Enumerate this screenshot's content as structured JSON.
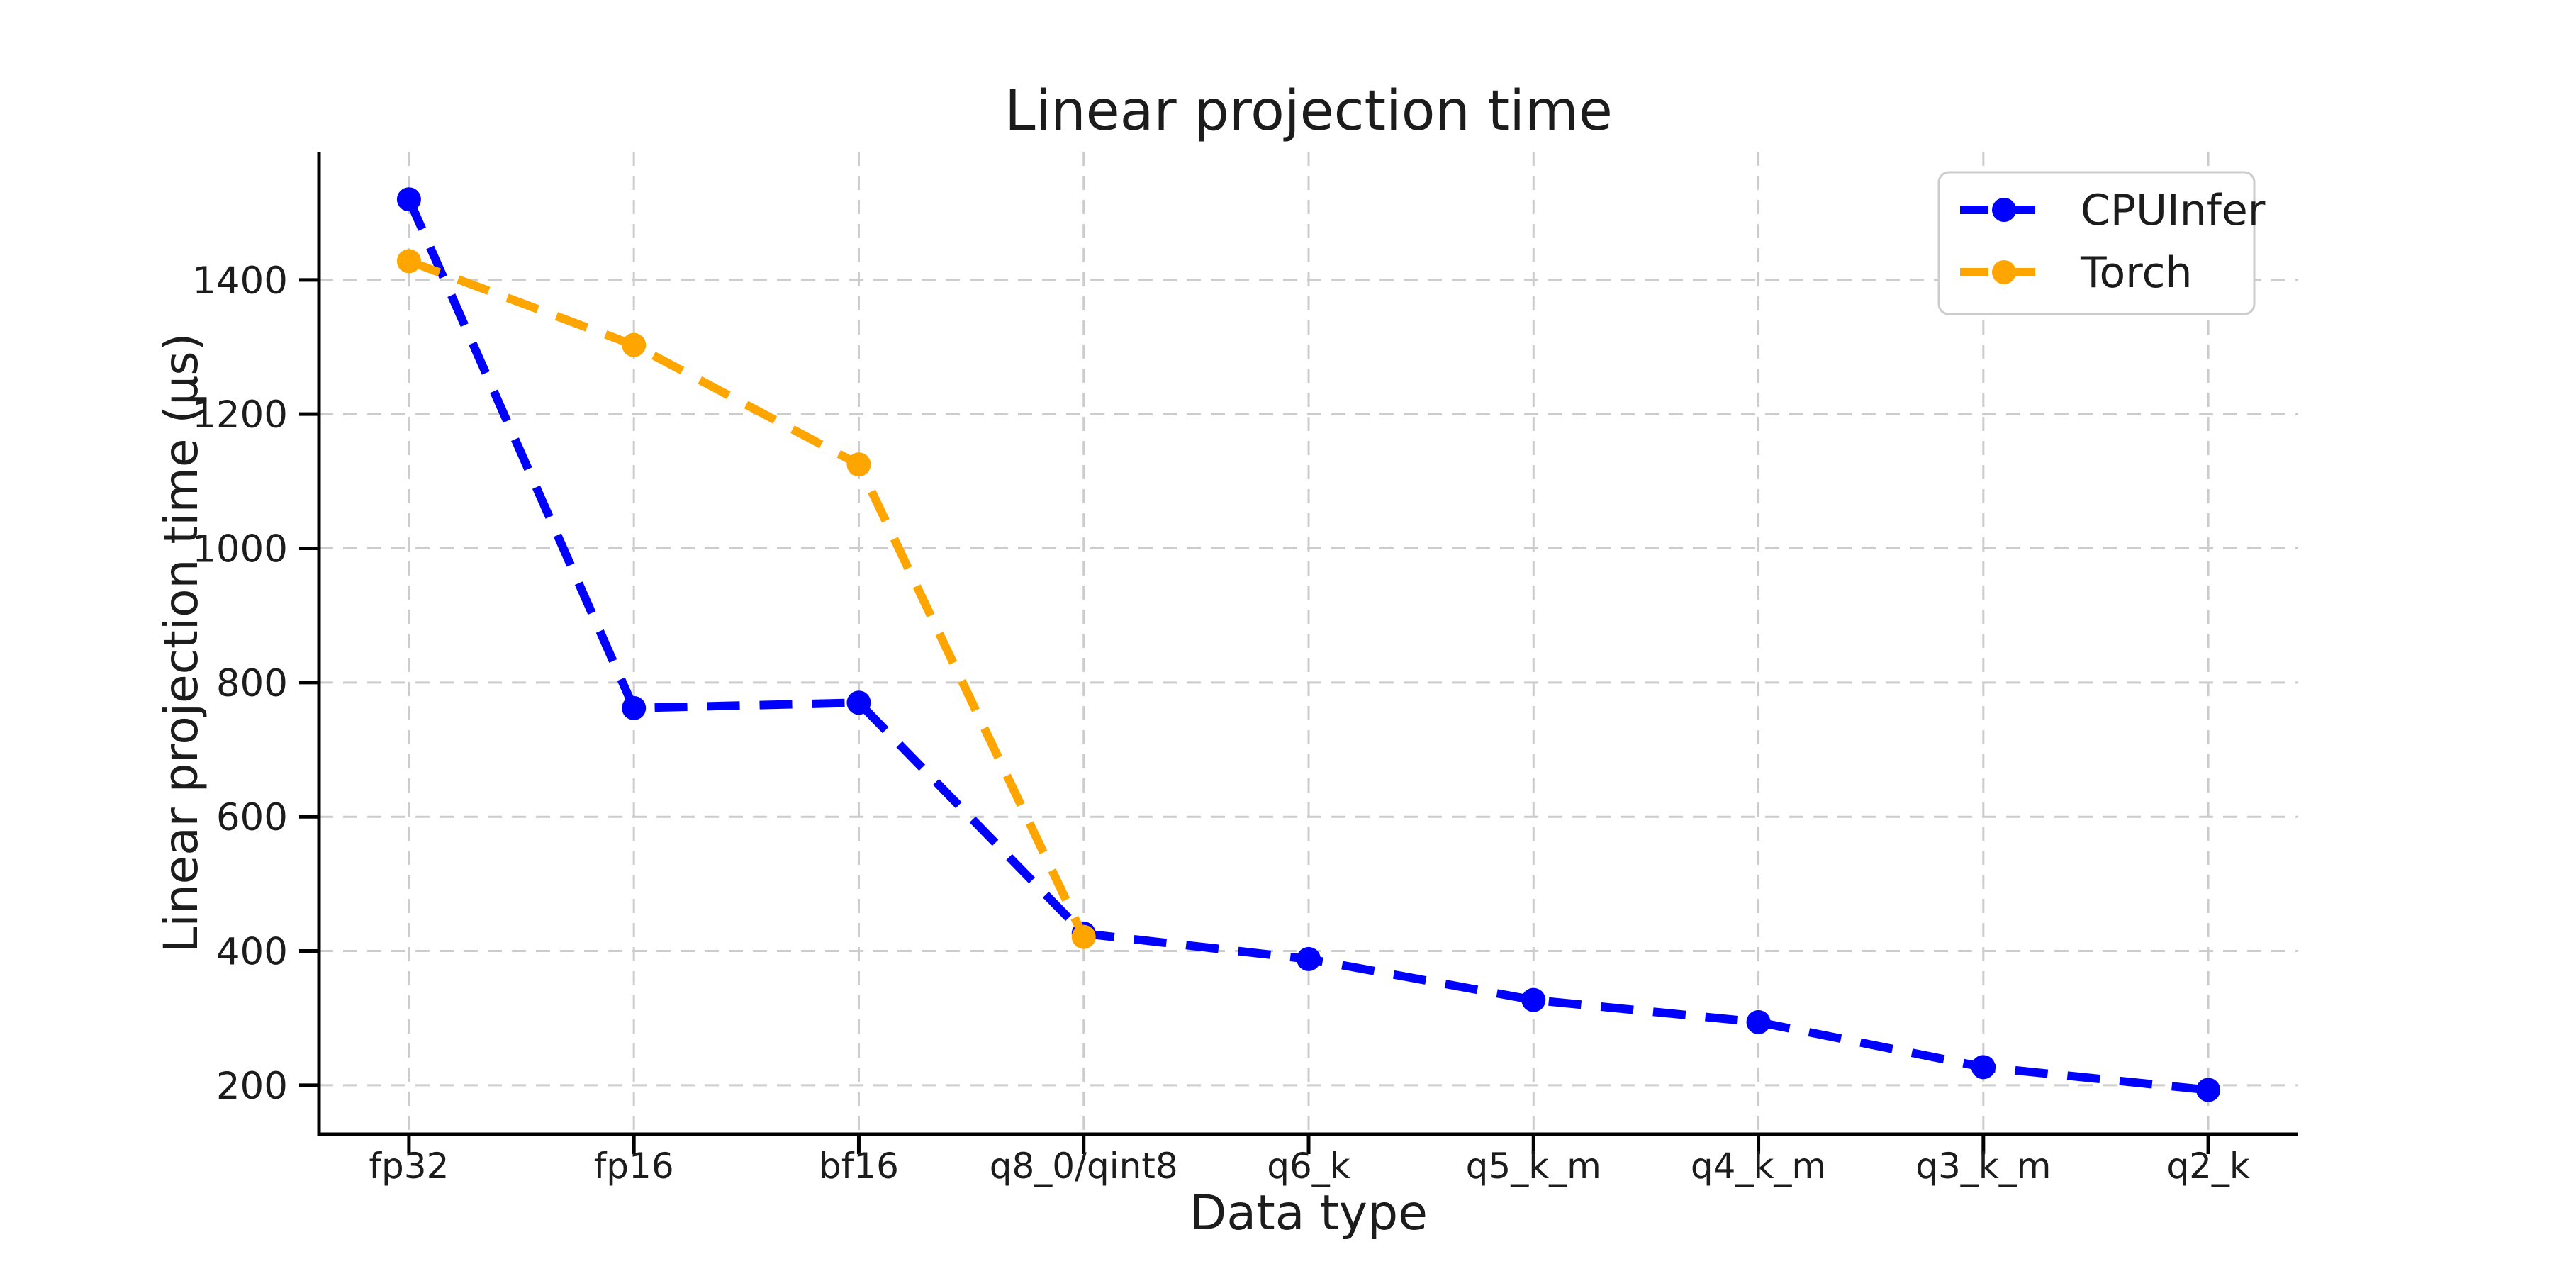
{
  "chart_data": {
    "type": "line",
    "title": "Linear projection time",
    "xlabel": "Data type",
    "ylabel": "Linear projection time (μs)",
    "categories": [
      "fp32",
      "fp16",
      "bf16",
      "q8_0/qint8",
      "q6_k",
      "q5_k_m",
      "q4_k_m",
      "q3_k_m",
      "q2_k"
    ],
    "series": [
      {
        "name": "CPUInfer",
        "color": "#0000ff",
        "line_style": "dashed",
        "marker": "circle",
        "values": [
          1520,
          762,
          770,
          426,
          388,
          327,
          294,
          227,
          193
        ]
      },
      {
        "name": "Torch",
        "color": "#ffa500",
        "line_style": "dashed",
        "marker": "circle",
        "values": [
          1428,
          1303,
          1125,
          421,
          null,
          null,
          null,
          null,
          null
        ]
      }
    ],
    "yticks": [
      200,
      400,
      600,
      800,
      1000,
      1200,
      1400
    ],
    "ylim": [
      127,
      1591
    ],
    "grid": true,
    "grid_color": "#cccccc",
    "axis_color": "#000000",
    "text_color": "#1c1c1c",
    "legend_position": "upper right",
    "legend_border_color": "#cccccc",
    "background": "#ffffff"
  }
}
